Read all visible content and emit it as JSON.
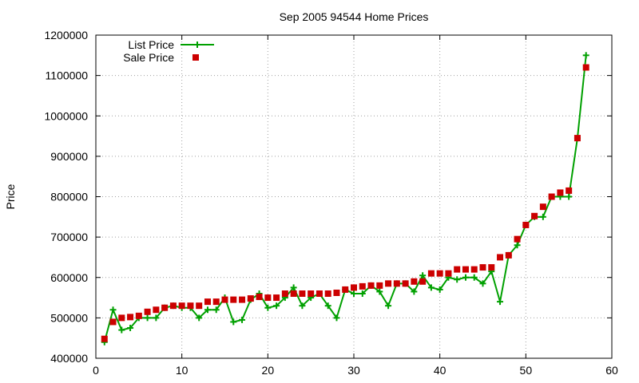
{
  "chart_data": {
    "type": "line",
    "title": "Sep 2005 94544 Home Prices",
    "xlabel": "",
    "ylabel": "Price",
    "xlim": [
      0,
      60
    ],
    "ylim": [
      400000,
      1200000
    ],
    "x_ticks": [
      0,
      10,
      20,
      30,
      40,
      50,
      60
    ],
    "y_ticks": [
      400000,
      500000,
      600000,
      700000,
      800000,
      900000,
      1000000,
      1100000,
      1200000
    ],
    "grid": true,
    "legend_position": "top-left",
    "series": [
      {
        "name": "List Price",
        "style": "lines-points",
        "marker": "plus",
        "color": "#00a000",
        "x": [
          1,
          2,
          3,
          4,
          5,
          6,
          7,
          8,
          9,
          10,
          11,
          12,
          13,
          14,
          15,
          16,
          17,
          18,
          19,
          20,
          21,
          22,
          23,
          24,
          25,
          26,
          27,
          28,
          29,
          30,
          31,
          32,
          33,
          34,
          35,
          36,
          37,
          38,
          39,
          40,
          41,
          42,
          43,
          44,
          45,
          46,
          47,
          48,
          49,
          50,
          51,
          52,
          53,
          54,
          55,
          56,
          57
        ],
        "values": [
          440000,
          520000,
          470000,
          475000,
          500000,
          500000,
          500000,
          525000,
          530000,
          525000,
          525000,
          500000,
          520000,
          520000,
          550000,
          490000,
          495000,
          545000,
          560000,
          525000,
          530000,
          550000,
          575000,
          530000,
          550000,
          560000,
          530000,
          500000,
          570000,
          560000,
          560000,
          580000,
          565000,
          530000,
          585000,
          585000,
          565000,
          605000,
          575000,
          570000,
          600000,
          595000,
          600000,
          600000,
          585000,
          615000,
          540000,
          655000,
          680000,
          730000,
          750000,
          750000,
          800000,
          800000,
          800000,
          945000,
          1150000
        ]
      },
      {
        "name": "Sale Price",
        "style": "points",
        "marker": "square",
        "color": "#cc0000",
        "x": [
          1,
          2,
          3,
          4,
          5,
          6,
          7,
          8,
          9,
          10,
          11,
          12,
          13,
          14,
          15,
          16,
          17,
          18,
          19,
          20,
          21,
          22,
          23,
          24,
          25,
          26,
          27,
          28,
          29,
          30,
          31,
          32,
          33,
          34,
          35,
          36,
          37,
          38,
          39,
          40,
          41,
          42,
          43,
          44,
          45,
          46,
          47,
          48,
          49,
          50,
          51,
          52,
          53,
          54,
          55,
          56,
          57
        ],
        "values": [
          448000,
          490000,
          500000,
          502000,
          505000,
          515000,
          520000,
          525000,
          530000,
          530000,
          530000,
          530000,
          540000,
          540000,
          545000,
          545000,
          545000,
          548000,
          552000,
          550000,
          550000,
          560000,
          560000,
          560000,
          560000,
          560000,
          560000,
          562000,
          570000,
          575000,
          578000,
          580000,
          580000,
          585000,
          585000,
          585000,
          590000,
          590000,
          610000,
          610000,
          610000,
          620000,
          620000,
          620000,
          625000,
          625000,
          650000,
          655000,
          695000,
          730000,
          752000,
          775000,
          800000,
          810000,
          815000,
          945000,
          1120000
        ]
      }
    ]
  }
}
